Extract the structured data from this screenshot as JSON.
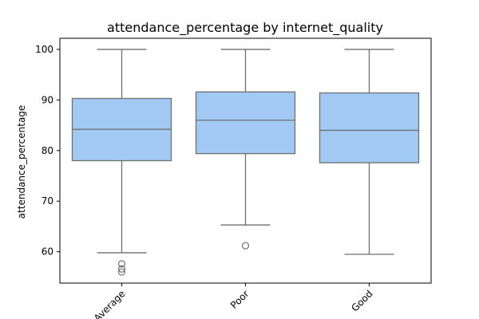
{
  "chart_data": {
    "type": "box",
    "title": "attendance_percentage by internet_quality",
    "xlabel": "",
    "ylabel": "attendance_percentage",
    "ylim": [
      53.8,
      102.2
    ],
    "yticks": [
      60,
      70,
      80,
      90,
      100
    ],
    "grid": false,
    "box_color": "#a1c9f4",
    "line_color": "#6f6f6f",
    "categories": [
      "Average",
      "Poor",
      "Good"
    ],
    "boxes": [
      {
        "category": "Average",
        "whisker_low": 59.8,
        "q1": 78.0,
        "median": 84.2,
        "q3": 90.3,
        "whisker_high": 100,
        "outliers": [
          57.6,
          56.6,
          56.0
        ]
      },
      {
        "category": "Poor",
        "whisker_low": 65.3,
        "q1": 79.4,
        "median": 86.0,
        "q3": 91.6,
        "whisker_high": 100,
        "outliers": [
          61.2
        ]
      },
      {
        "category": "Good",
        "whisker_low": 59.5,
        "q1": 77.6,
        "median": 84.0,
        "q3": 91.4,
        "whisker_high": 100,
        "outliers": []
      }
    ]
  }
}
